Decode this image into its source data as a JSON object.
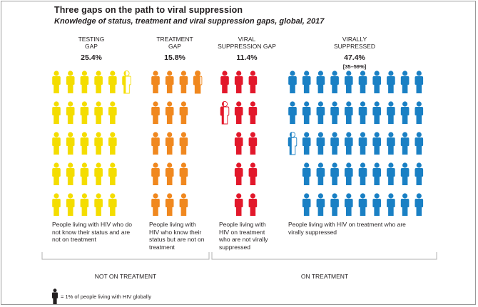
{
  "chart_data": {
    "type": "pictogram",
    "title": "Three gaps on the path to viral suppression",
    "subtitle": "Knowledge of status, treatment and viral suppression gaps, global, 2017",
    "unit_note": "= 1% of people living with HIV globally",
    "groups": [
      {
        "id": "testing",
        "label_lines": [
          "TESTING",
          "GAP"
        ],
        "value_label": "25.4%",
        "value": 25.4,
        "color": "#f4dd00",
        "description": [
          "People living with HIV who do",
          "not know their status and are",
          "not on treatment"
        ]
      },
      {
        "id": "treatment",
        "label_lines": [
          "TREATMENT",
          "GAP"
        ],
        "value_label": "15.8%",
        "value": 15.8,
        "color": "#f0881f",
        "description": [
          "People living with",
          "HIV who know their",
          "status but are not on",
          "treatment"
        ]
      },
      {
        "id": "viral_gap",
        "label_lines": [
          "VIRAL",
          "SUPPRESSION GAP"
        ],
        "value_label": "11.4%",
        "value": 11.4,
        "color": "#e2182b",
        "description": [
          "People living with",
          "HIV on treatment",
          "who are not virally",
          "suppressed"
        ]
      },
      {
        "id": "suppressed",
        "label_lines": [
          "VIRALLY",
          "SUPPRESSED"
        ],
        "value_label": "47.4%",
        "value": 47.4,
        "range": "[35–59%]",
        "color": "#1a80c4",
        "description": [
          "People living with HIV on treatment who are",
          "virally suppressed"
        ]
      }
    ],
    "brackets": [
      {
        "label": "NOT ON TREATMENT"
      },
      {
        "label": "ON TREATMENT"
      }
    ]
  }
}
